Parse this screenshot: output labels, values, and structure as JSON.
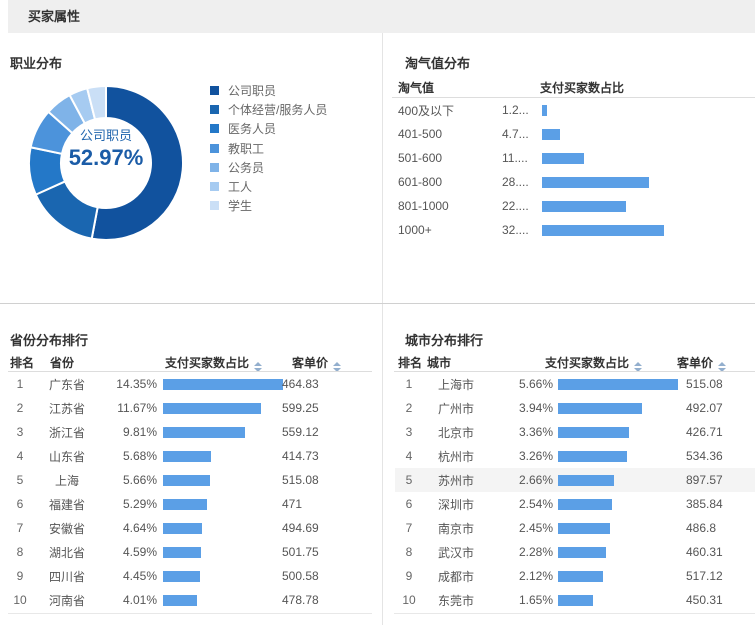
{
  "header": {
    "title": "买家属性"
  },
  "colors": {
    "bar_blue": "#5B9FE6",
    "header_bar_bg": "#EFEFEF",
    "highlight_row": "#F4F4F4",
    "donut_center_text": "#1B5CA7"
  },
  "chart_data": [
    {
      "type": "pie",
      "donut": true,
      "title": "职业分布",
      "labels": [
        "公司职员",
        "个体经营/服务人员",
        "医务人员",
        "教职工",
        "公务员",
        "工人",
        "学生"
      ],
      "values": [
        52.97,
        15.3,
        10.0,
        8.3,
        5.6,
        3.9,
        3.93
      ],
      "values_estimated": "only 52.97% is labeled on screen; other slice values estimated from arc angles",
      "colors": [
        "#11529E",
        "#1A66B0",
        "#2478C8",
        "#4C93DB",
        "#7FB3E8",
        "#A6CBF1",
        "#CADFF6"
      ],
      "center_label": "公司职员",
      "center_value": "52.97%",
      "legend_position": "right"
    },
    {
      "type": "bar",
      "orientation": "horizontal",
      "title": "淘气值分布",
      "columns": [
        "淘气值",
        "支付买家数占比"
      ],
      "categories": [
        "400及以下",
        "401-500",
        "501-600",
        "601-800",
        "801-1000",
        "1000+"
      ],
      "value_labels": [
        "1.2...",
        "4.7...",
        "11....",
        "28....",
        "22....",
        "32...."
      ],
      "values": [
        1.2,
        4.7,
        11,
        28,
        22,
        32
      ],
      "values_estimated": "value labels are truncated with ellipsis on screen; bar lengths proportional to values",
      "xmax": 32
    },
    {
      "type": "table",
      "title": "省份分布排行",
      "columns": {
        "rank": "排名",
        "name": "省份",
        "share": "支付买家数占比",
        "price": "客单价"
      },
      "sortable": [
        "share",
        "price"
      ],
      "bar_max": 14.35,
      "rows": [
        {
          "rank": "1",
          "name": "广东省",
          "share_label": "14.35%",
          "share": 14.35,
          "price": "464.83"
        },
        {
          "rank": "2",
          "name": "江苏省",
          "share_label": "11.67%",
          "share": 11.67,
          "price": "599.25"
        },
        {
          "rank": "3",
          "name": "浙江省",
          "share_label": "9.81%",
          "share": 9.81,
          "price": "559.12"
        },
        {
          "rank": "4",
          "name": "山东省",
          "share_label": "5.68%",
          "share": 5.68,
          "price": "414.73"
        },
        {
          "rank": "5",
          "name": "上海",
          "share_label": "5.66%",
          "share": 5.66,
          "price": "515.08"
        },
        {
          "rank": "6",
          "name": "福建省",
          "share_label": "5.29%",
          "share": 5.29,
          "price": "471"
        },
        {
          "rank": "7",
          "name": "安徽省",
          "share_label": "4.64%",
          "share": 4.64,
          "price": "494.69"
        },
        {
          "rank": "8",
          "name": "湖北省",
          "share_label": "4.59%",
          "share": 4.59,
          "price": "501.75"
        },
        {
          "rank": "9",
          "name": "四川省",
          "share_label": "4.45%",
          "share": 4.45,
          "price": "500.58"
        },
        {
          "rank": "10",
          "name": "河南省",
          "share_label": "4.01%",
          "share": 4.01,
          "price": "478.78"
        }
      ]
    },
    {
      "type": "table",
      "title": "城市分布排行",
      "columns": {
        "rank": "排名",
        "name": "城市",
        "share": "支付买家数占比",
        "price": "客单价"
      },
      "sortable": [
        "share",
        "price"
      ],
      "bar_max": 5.66,
      "highlighted_rank": "5",
      "rows": [
        {
          "rank": "1",
          "name": "上海市",
          "share_label": "5.66%",
          "share": 5.66,
          "price": "515.08"
        },
        {
          "rank": "2",
          "name": "广州市",
          "share_label": "3.94%",
          "share": 3.94,
          "price": "492.07"
        },
        {
          "rank": "3",
          "name": "北京市",
          "share_label": "3.36%",
          "share": 3.36,
          "price": "426.71"
        },
        {
          "rank": "4",
          "name": "杭州市",
          "share_label": "3.26%",
          "share": 3.26,
          "price": "534.36"
        },
        {
          "rank": "5",
          "name": "苏州市",
          "share_label": "2.66%",
          "share": 2.66,
          "price": "897.57"
        },
        {
          "rank": "6",
          "name": "深圳市",
          "share_label": "2.54%",
          "share": 2.54,
          "price": "385.84"
        },
        {
          "rank": "7",
          "name": "南京市",
          "share_label": "2.45%",
          "share": 2.45,
          "price": "486.8"
        },
        {
          "rank": "8",
          "name": "武汉市",
          "share_label": "2.28%",
          "share": 2.28,
          "price": "460.31"
        },
        {
          "rank": "9",
          "name": "成都市",
          "share_label": "2.12%",
          "share": 2.12,
          "price": "517.12"
        },
        {
          "rank": "10",
          "name": "东莞市",
          "share_label": "1.65%",
          "share": 1.65,
          "price": "450.31"
        }
      ]
    }
  ]
}
